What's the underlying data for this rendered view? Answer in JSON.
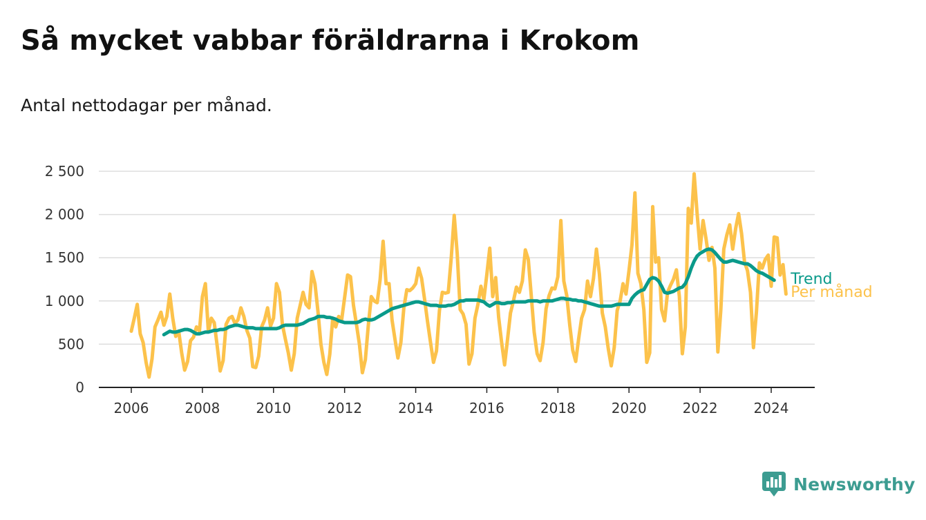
{
  "header": {
    "title": "Så mycket vabbar föräldrarna i Krokom",
    "subtitle": "Antal nettodagar per månad."
  },
  "brand": {
    "name": "Newsworthy",
    "icon": "bar-chart-logo-icon"
  },
  "colors": {
    "monthly": "#fcc24b",
    "trend": "#0a9a8a",
    "grid": "#dddddd",
    "axis": "#222222",
    "brand": "#3c9c91"
  },
  "chart_data": {
    "type": "line",
    "title": "Så mycket vabbar föräldrarna i Krokom",
    "subtitle": "Antal nettodagar per månad.",
    "xlabel": "",
    "ylabel": "",
    "xlim": [
      2005.2,
      2025.1
    ],
    "ylim": [
      0,
      2500
    ],
    "xticks": [
      2006,
      2008,
      2010,
      2012,
      2014,
      2016,
      2018,
      2020,
      2022,
      2024
    ],
    "xtick_labels": [
      "2006",
      "2008",
      "2010",
      "2012",
      "2014",
      "2016",
      "2018",
      "2020",
      "2022",
      "2024"
    ],
    "yticks": [
      0,
      500,
      1000,
      1500,
      2000,
      2500
    ],
    "ytick_labels": [
      "0",
      "500",
      "1 000",
      "1 500",
      "2 000",
      "2 500"
    ],
    "grid": true,
    "series": [
      {
        "name": "Per månad",
        "label": "Per månad",
        "start_year": 2006,
        "start_month": 1,
        "values": [
          650,
          800,
          960,
          620,
          520,
          290,
          120,
          330,
          700,
          780,
          870,
          720,
          820,
          1080,
          800,
          590,
          650,
          400,
          200,
          300,
          540,
          580,
          700,
          650,
          1050,
          1200,
          650,
          800,
          750,
          480,
          190,
          310,
          730,
          800,
          820,
          740,
          780,
          920,
          820,
          660,
          570,
          240,
          230,
          360,
          700,
          780,
          920,
          710,
          800,
          1200,
          1100,
          730,
          560,
          400,
          200,
          390,
          800,
          950,
          1100,
          960,
          920,
          1340,
          1200,
          880,
          500,
          290,
          150,
          380,
          800,
          700,
          820,
          780,
          1040,
          1300,
          1280,
          950,
          730,
          500,
          170,
          320,
          720,
          1050,
          1000,
          980,
          1250,
          1690,
          1200,
          1200,
          780,
          560,
          340,
          520,
          920,
          1130,
          1120,
          1150,
          1200,
          1380,
          1260,
          1020,
          760,
          520,
          290,
          420,
          890,
          1100,
          1090,
          1100,
          1500,
          1990,
          1550,
          900,
          850,
          730,
          270,
          390,
          800,
          960,
          1170,
          1020,
          1300,
          1610,
          1050,
          1270,
          810,
          520,
          260,
          560,
          860,
          1000,
          1160,
          1100,
          1230,
          1590,
          1480,
          1060,
          640,
          390,
          310,
          520,
          910,
          1060,
          1150,
          1140,
          1280,
          1930,
          1230,
          1060,
          720,
          430,
          300,
          560,
          800,
          900,
          1230,
          1050,
          1260,
          1600,
          1310,
          860,
          700,
          450,
          250,
          460,
          890,
          1000,
          1200,
          1080,
          1350,
          1650,
          2250,
          1320,
          1200,
          900,
          290,
          400,
          2090,
          1450,
          1500,
          900,
          770,
          1100,
          1180,
          1250,
          1360,
          1050,
          390,
          700,
          2070,
          1900,
          2470,
          2010,
          1600,
          1930,
          1720,
          1470,
          1620,
          1380,
          410,
          900,
          1600,
          1760,
          1880,
          1600,
          1840,
          2010,
          1780,
          1450,
          1350,
          1100,
          460,
          870,
          1440,
          1380,
          1480,
          1530,
          1170,
          1740,
          1730,
          1300,
          1420,
          1080
        ]
      },
      {
        "name": "Trend",
        "label": "Trend",
        "start_year": 2006,
        "start_month": 12,
        "values": [
          610,
          630,
          650,
          640,
          640,
          650,
          660,
          670,
          670,
          660,
          640,
          620,
          620,
          630,
          640,
          640,
          650,
          660,
          660,
          670,
          670,
          680,
          700,
          710,
          720,
          720,
          710,
          700,
          690,
          690,
          690,
          680,
          680,
          680,
          680,
          680,
          680,
          680,
          680,
          690,
          710,
          720,
          720,
          720,
          720,
          720,
          730,
          740,
          760,
          780,
          790,
          800,
          820,
          820,
          820,
          810,
          810,
          800,
          790,
          770,
          760,
          750,
          750,
          750,
          750,
          750,
          760,
          780,
          790,
          780,
          780,
          790,
          810,
          830,
          850,
          870,
          890,
          910,
          920,
          930,
          940,
          950,
          960,
          970,
          980,
          990,
          990,
          980,
          970,
          960,
          950,
          950,
          950,
          940,
          940,
          940,
          950,
          950,
          960,
          980,
          1000,
          1000,
          1010,
          1010,
          1010,
          1010,
          1010,
          1000,
          990,
          960,
          940,
          960,
          980,
          980,
          970,
          970,
          980,
          980,
          990,
          990,
          990,
          990,
          990,
          1000,
          1000,
          1000,
          1000,
          990,
          1000,
          1000,
          1000,
          1000,
          1010,
          1020,
          1030,
          1030,
          1020,
          1020,
          1010,
          1010,
          1000,
          1000,
          990,
          980,
          970,
          960,
          950,
          940,
          940,
          940,
          940,
          940,
          950,
          960,
          960,
          960,
          960,
          960,
          1030,
          1070,
          1100,
          1120,
          1130,
          1190,
          1250,
          1270,
          1260,
          1230,
          1170,
          1100,
          1090,
          1100,
          1110,
          1130,
          1150,
          1160,
          1200,
          1280,
          1380,
          1460,
          1520,
          1550,
          1570,
          1590,
          1600,
          1590,
          1560,
          1520,
          1480,
          1450,
          1450,
          1460,
          1470,
          1460,
          1450,
          1440,
          1430,
          1430,
          1410,
          1380,
          1350,
          1330,
          1320,
          1300,
          1280,
          1260,
          1240
        ]
      }
    ]
  }
}
